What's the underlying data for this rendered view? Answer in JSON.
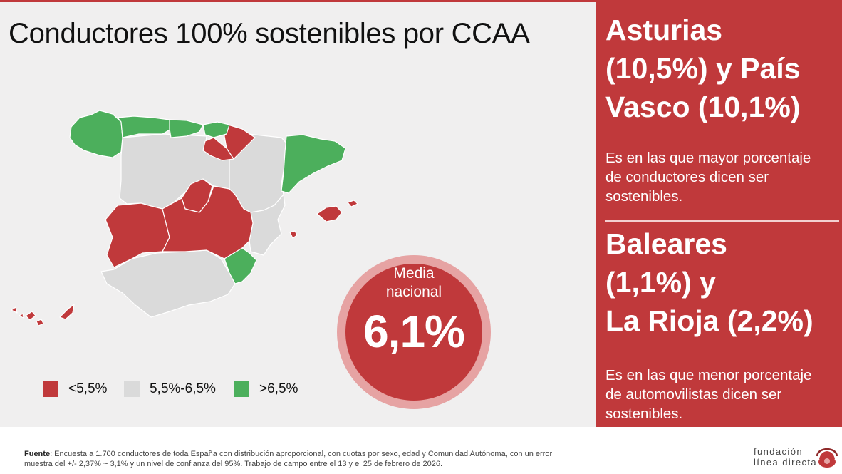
{
  "title": "Conductores 100% sostenibles por CCAA",
  "colors": {
    "low": "#c0393b",
    "mid": "#dadada",
    "high": "#4caf5c",
    "accent": "#c0393b"
  },
  "legend": [
    {
      "label": "<5,5%",
      "color": "#c0393b"
    },
    {
      "label": "5,5%-6,5%",
      "color": "#dadada"
    },
    {
      "label": ">6,5%",
      "color": "#4caf5c"
    }
  ],
  "average": {
    "label_line1": "Media",
    "label_line2": "nacional",
    "value": "6,1%"
  },
  "highlights": {
    "top": {
      "line1": "Asturias",
      "line2": "(10,5%) y País",
      "line3": "Vasco (10,1%)",
      "desc1": "Es en las que mayor porcentaje",
      "desc2": "de conductores dicen ser",
      "desc3": "sostenibles."
    },
    "bottom": {
      "line1": "Baleares",
      "line2": "(1,1%) y",
      "line3": "La Rioja (2,2%)",
      "desc1": "Es en las que menor porcentaje",
      "desc2": "de automovilistas dicen ser",
      "desc3": "sostenibles."
    }
  },
  "footer": {
    "source_label": "Fuente",
    "source_line1": ": Encuesta a 1.700 conductores de toda España con distribución aproporcional, con cuotas por sexo, edad y Comunidad Autónoma, con un error",
    "source_line2": "muestra del +/- 2,37% ~ 3,1% y un nivel de confianza del 95%. Trabajo de campo entre el 13 y el 25 de febrero de 2026.",
    "logo_line1": "fundación",
    "logo_line2": "línea directa"
  }
}
